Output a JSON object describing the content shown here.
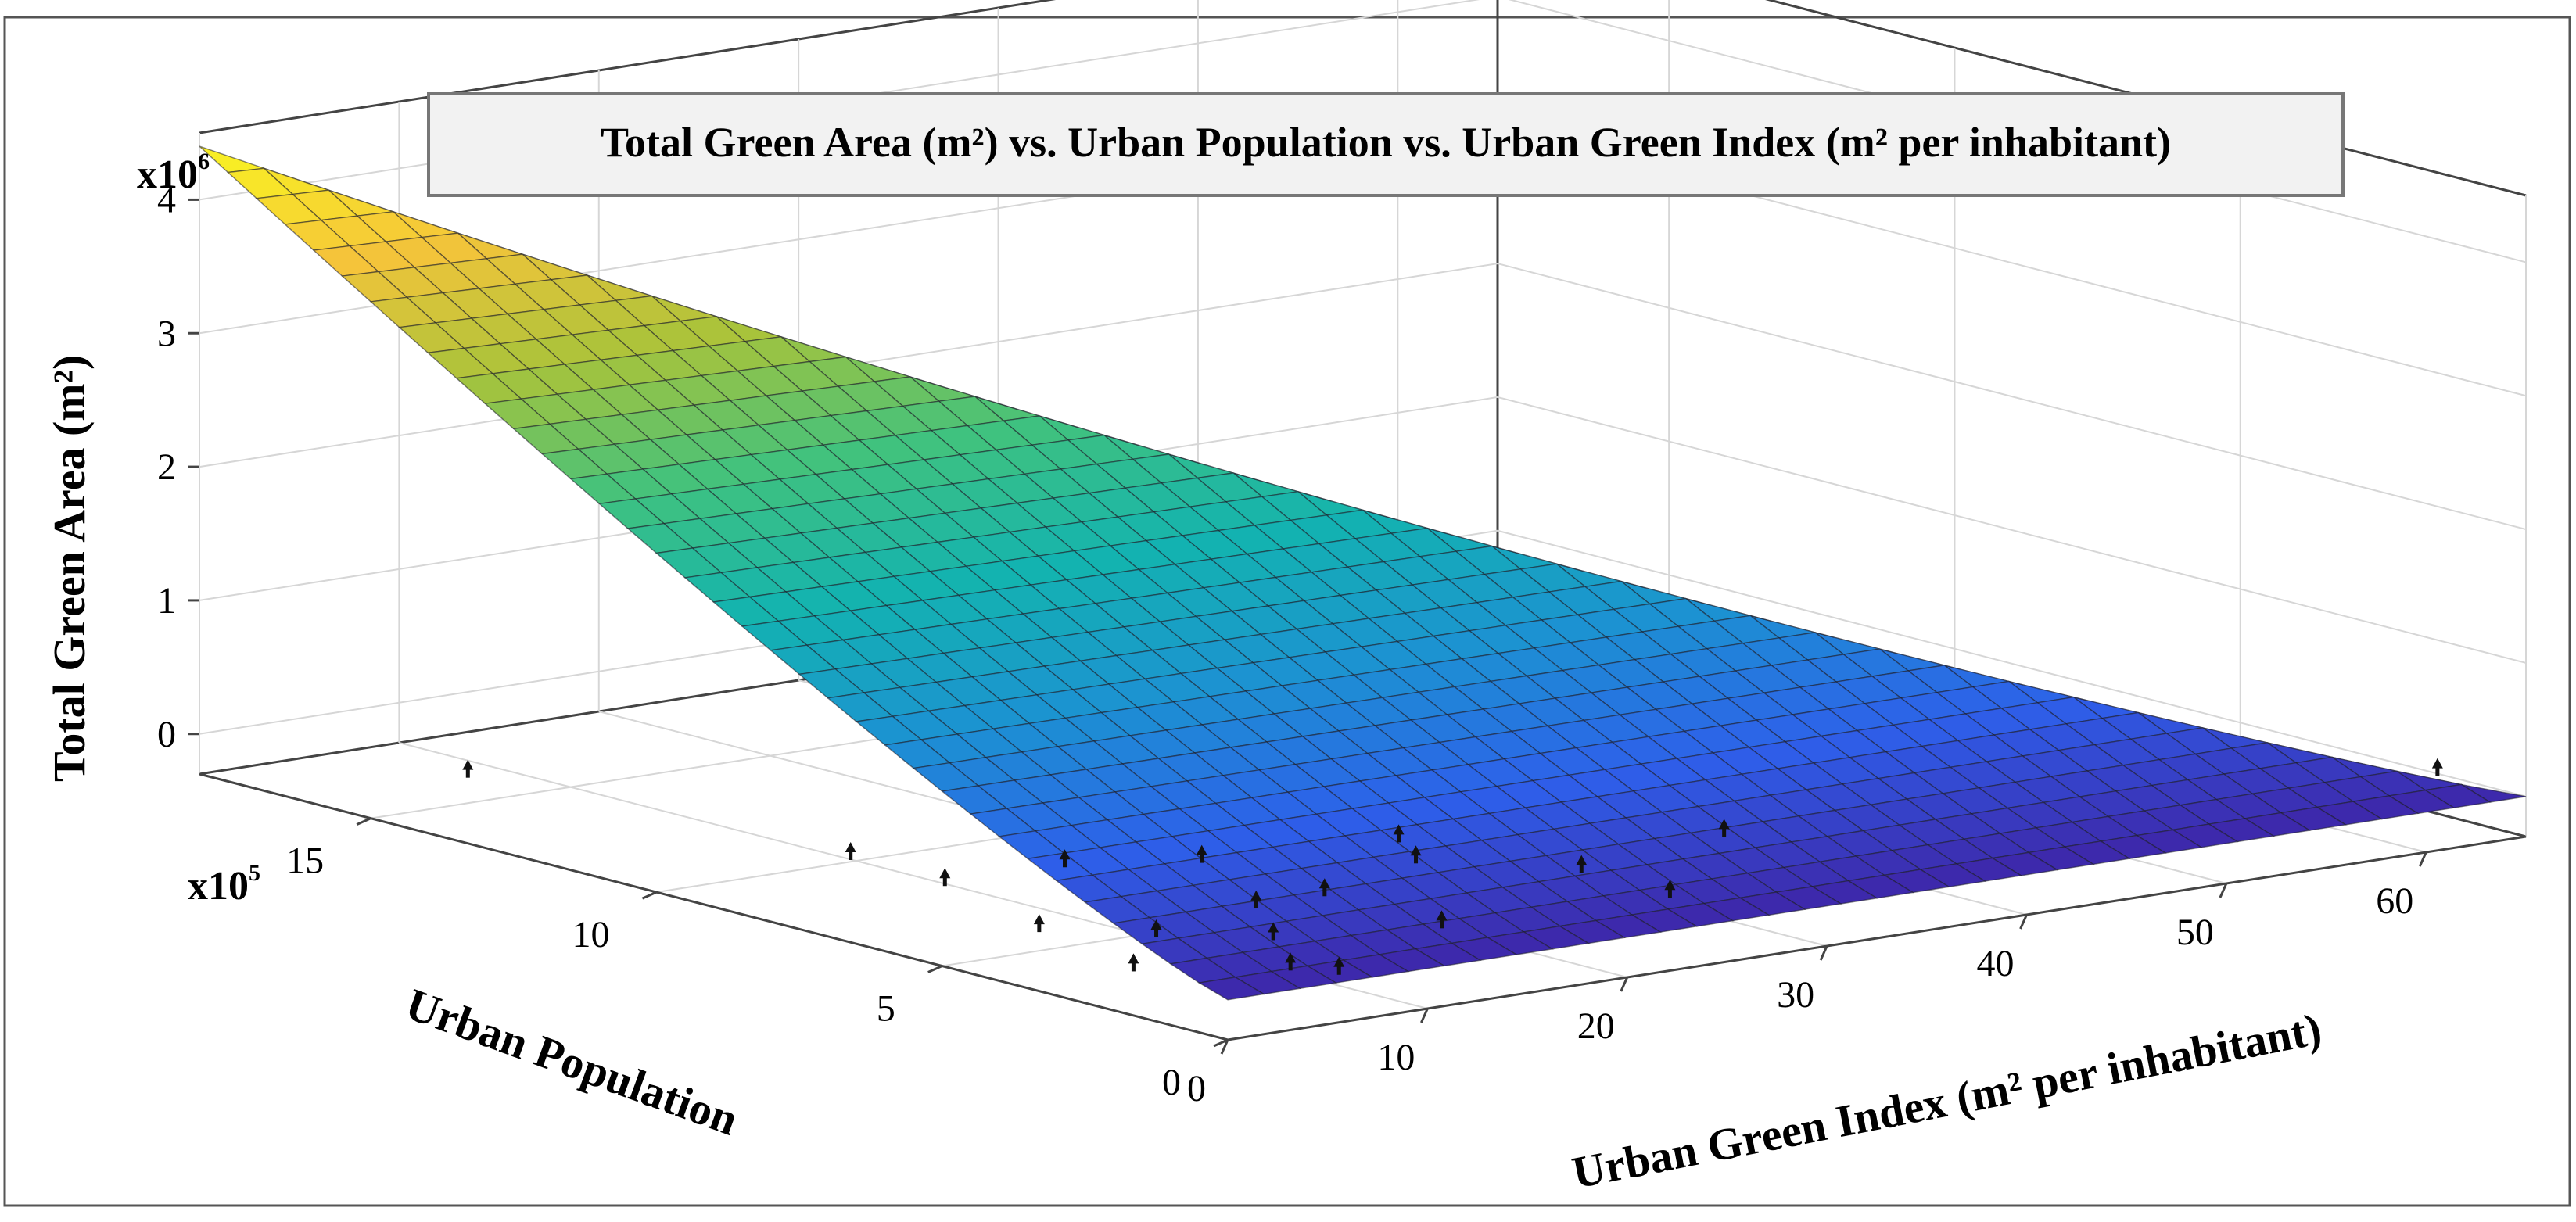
{
  "chart_data": {
    "type": "surface3d",
    "title": "Total Green Area (m²) vs. Urban Population vs. Urban Green Index (m² per inhabitant)",
    "xlabel": "Urban Green Index (m² per inhabitant)",
    "ylabel": "Urban Population",
    "zlabel": "Total Green Area (m²)",
    "x_ticks": [
      "0",
      "10",
      "20",
      "30",
      "40",
      "50",
      "60"
    ],
    "y_ticks": [
      "0",
      "5",
      "10",
      "15"
    ],
    "z_ticks": [
      "0",
      "1",
      "2",
      "3",
      "4"
    ],
    "y_multiplier": "x10^5",
    "z_multiplier": "x10^6",
    "xlim": [
      0,
      65
    ],
    "ylim": [
      0,
      18
    ],
    "zlim": [
      -0.3,
      4.5
    ],
    "grid": true,
    "colormap": [
      "#3e26a8",
      "#2e5fea",
      "#1c92d2",
      "#13b3b0",
      "#40c27e",
      "#a9c33a",
      "#f5c43a",
      "#f9f620"
    ],
    "surface": {
      "x_range": [
        0,
        65
      ],
      "y_range": [
        0,
        18
      ],
      "z_max": 4.4
    },
    "points": [
      {
        "x": 1,
        "y": 2,
        "z": 0.05
      },
      {
        "x": 2,
        "y": 4,
        "z": 0.1
      },
      {
        "x": 3,
        "y": 6,
        "z": 0.2
      },
      {
        "x": 5,
        "y": 3,
        "z": 0.1
      },
      {
        "x": 4,
        "y": 8,
        "z": 0.15
      },
      {
        "x": 6,
        "y": 1,
        "z": 0.05
      },
      {
        "x": 8,
        "y": 2,
        "z": 0.12
      },
      {
        "x": 10,
        "y": 3,
        "z": 0.2
      },
      {
        "x": 12,
        "y": 2.5,
        "z": 0.3
      },
      {
        "x": 15,
        "y": 1.5,
        "z": 0.1
      },
      {
        "x": 18,
        "y": 3,
        "z": 0.35
      },
      {
        "x": 22,
        "y": 1.5,
        "z": 0.35
      },
      {
        "x": 25,
        "y": 1,
        "z": 0.15
      },
      {
        "x": 30,
        "y": 1.8,
        "z": 0.4
      },
      {
        "x": 9,
        "y": 6,
        "z": 0.2
      },
      {
        "x": 13,
        "y": 5,
        "z": 0.25
      },
      {
        "x": 20,
        "y": 4,
        "z": 0.35
      },
      {
        "x": 62,
        "y": 0.5,
        "z": 0.25
      },
      {
        "x": 2,
        "y": 14,
        "z": 0.15
      },
      {
        "x": 7,
        "y": 0.5,
        "z": 0.05
      }
    ]
  }
}
